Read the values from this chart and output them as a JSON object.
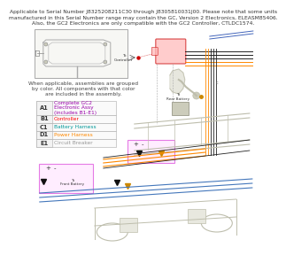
{
  "header_text": "Applicable to Serial Number J8325208211C30 through J8305810031J00. Please note that some units\nmanufactured in this Serial Number range may contain the GC, Version 2 Electronics, ELEASM85406.\nAlso, the GC2 Electronics are only compatible with the GC2 Controller, CTLDC1574.",
  "legend_header": "When applicable, assemblies are grouped\nby color. All components with that color\nare included in the assembly.",
  "legend_items": [
    {
      "code": "A1",
      "desc": "Complete GC2\nElectronic Assy\n(includes B1-E1)",
      "desc_color": "#9900AA"
    },
    {
      "code": "B1",
      "desc": "Controller",
      "desc_color": "#FF0000"
    },
    {
      "code": "C1",
      "desc": "Battery Harness",
      "desc_color": "#009999"
    },
    {
      "code": "D1",
      "desc": "Power Harness",
      "desc_color": "#FF8800"
    },
    {
      "code": "E1",
      "desc": "Circuit Breaker",
      "desc_color": "#999999"
    }
  ],
  "bg_color": "#FFFFFF",
  "diagram_color": "#BEBEAD",
  "gray_light": "#E8E8DF"
}
